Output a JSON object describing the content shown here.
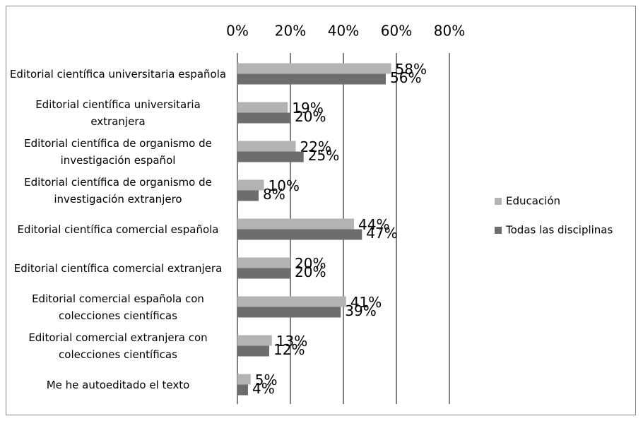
{
  "chart_data": {
    "type": "bar",
    "orientation": "horizontal",
    "categories": [
      "Editorial científica universitaria española",
      "Editorial científica universitaria extranjera",
      "Editorial científica de organismo de investigación español",
      "Editorial científica de organismo de investigación extranjero",
      "Editorial científica comercial española",
      "Editorial científica comercial extranjera",
      "Editorial comercial española con colecciones científicas",
      "Editorial comercial extranjera con colecciones científicas",
      "Me he autoeditado el texto"
    ],
    "series": [
      {
        "name": "Educación",
        "color": "#b3b3b3",
        "values": [
          58,
          19,
          22,
          10,
          44,
          20,
          41,
          13,
          5
        ],
        "value_labels": [
          "58%",
          "19%",
          "22%",
          "10%",
          "44%",
          "20%",
          "41%",
          "13%",
          "5%"
        ]
      },
      {
        "name": "Todas las disciplinas",
        "color": "#6d6d6d",
        "values": [
          56,
          20,
          25,
          8,
          47,
          20,
          39,
          12,
          4
        ],
        "value_labels": [
          "56%",
          "20%",
          "25%",
          "8%",
          "47%",
          "20%",
          "39%",
          "12%",
          "4%"
        ]
      }
    ],
    "xlim": [
      0,
      80
    ],
    "xticks": [
      {
        "value": 0,
        "label": "0%"
      },
      {
        "value": 20,
        "label": "20%"
      },
      {
        "value": 40,
        "label": "40%"
      },
      {
        "value": 60,
        "label": "60%"
      },
      {
        "value": 80,
        "label": "80%"
      }
    ],
    "grid": true,
    "legend": "right"
  }
}
